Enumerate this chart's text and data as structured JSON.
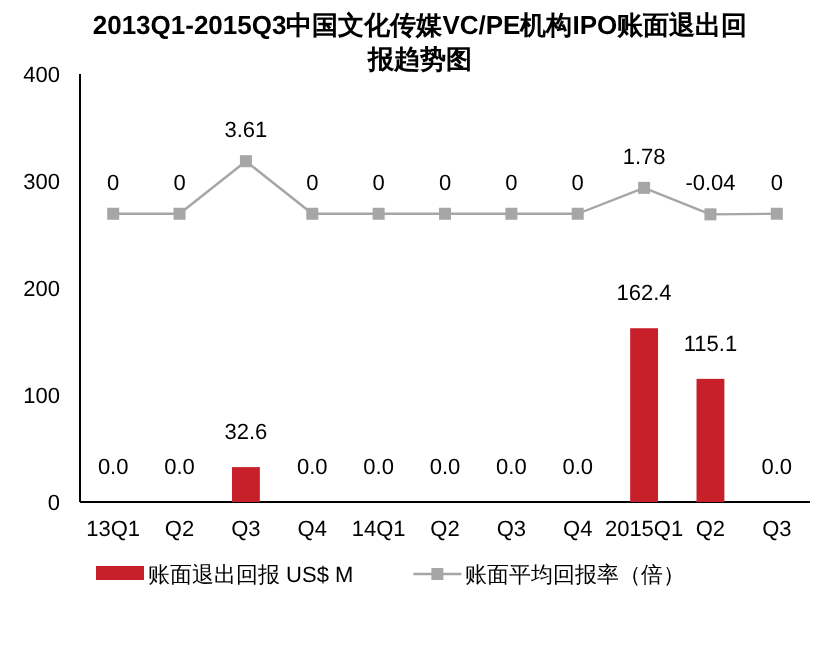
{
  "chart_data": {
    "type": "bar",
    "title": "2013Q1-2015Q3中国文化传媒VC/PE机构IPO账面退出回报趋势图",
    "categories": [
      "13Q1",
      "Q2",
      "Q3",
      "Q4",
      "14Q1",
      "Q2",
      "Q3",
      "Q4",
      "2015Q1",
      "Q2",
      "Q3"
    ],
    "series": [
      {
        "name": "账面退出回报 US$ M",
        "color": "#c8202a",
        "values": [
          0.0,
          0.0,
          32.6,
          0.0,
          0.0,
          0.0,
          0.0,
          0.0,
          162.4,
          115.1,
          0.0
        ],
        "value_labels": [
          "0.0",
          "0.0",
          "32.6",
          "0.0",
          "0.0",
          "0.0",
          "0.0",
          "0.0",
          "162.4",
          "115.1",
          "0.0"
        ]
      },
      {
        "name": "账面平均回报率（倍）",
        "type": "line",
        "axis": "y2",
        "color": "#a6a6a6",
        "values": [
          0,
          0,
          3.61,
          0,
          0,
          0,
          0,
          0,
          1.78,
          -0.04,
          0
        ]
      }
    ],
    "ylim": [
      0,
      400
    ],
    "yticks": [
      0,
      100,
      200,
      300,
      400
    ],
    "y2lim": [
      -19.8,
      9.6
    ],
    "marker": "square",
    "legend": "bottom",
    "data_labels": true,
    "grid": false
  }
}
